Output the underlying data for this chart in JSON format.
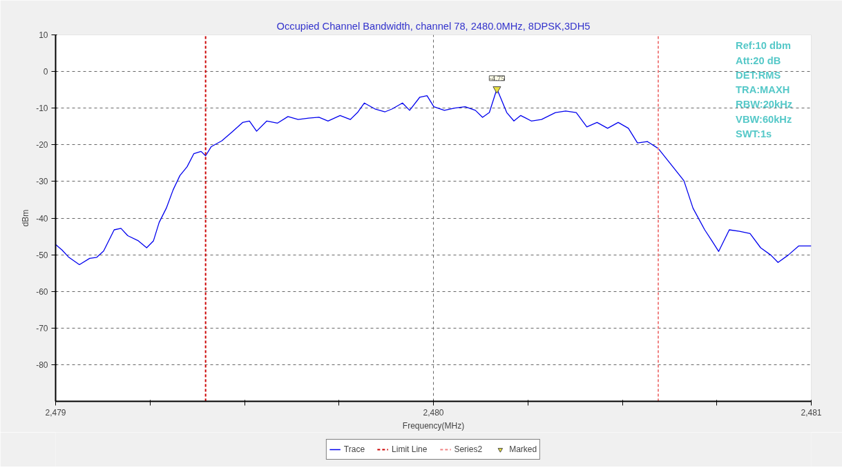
{
  "chart_data": {
    "type": "line",
    "title": "Occupied Channel Bandwidth, channel 78, 2480.0MHz, 8DPSK,3DH5",
    "xlabel": "Frequency(MHz)",
    "ylabel": "dBm",
    "xlim": [
      2479,
      2481
    ],
    "ylim": [
      -90,
      10
    ],
    "xticks": [
      {
        "value": 2479,
        "label": "2,479"
      },
      {
        "value": 2479.25,
        "label": null
      },
      {
        "value": 2479.5,
        "label": null
      },
      {
        "value": 2479.75,
        "label": null
      },
      {
        "value": 2480,
        "label": "2,480"
      },
      {
        "value": 2480.25,
        "label": null
      },
      {
        "value": 2480.5,
        "label": null
      },
      {
        "value": 2480.75,
        "label": null
      },
      {
        "value": 2481,
        "label": "2,481"
      }
    ],
    "yticks": [
      10,
      0,
      -10,
      -20,
      -30,
      -40,
      -50,
      -60,
      -70,
      -80
    ],
    "grid": true,
    "legend": "bottom",
    "annotations": [
      "Ref:10 dbm",
      "Att:20 dB",
      "DET:RMS",
      "TRA:MAXH",
      "RBW:20kHz",
      "VBW:60kHz",
      "SWT:1s"
    ],
    "series": [
      {
        "name": "Trace",
        "color": "#0000ee",
        "line_style": "solid",
        "x": [
          2479.0,
          2479.017,
          2479.035,
          2479.063,
          2479.09,
          2479.109,
          2479.127,
          2479.155,
          2479.173,
          2479.191,
          2479.219,
          2479.241,
          2479.259,
          2479.274,
          2479.293,
          2479.311,
          2479.329,
          2479.348,
          2479.366,
          2479.385,
          2479.397,
          2479.412,
          2479.44,
          2479.467,
          2479.495,
          2479.513,
          2479.532,
          2479.559,
          2479.587,
          2479.615,
          2479.642,
          2479.67,
          2479.697,
          2479.721,
          2479.753,
          2479.78,
          2479.799,
          2479.817,
          2479.845,
          2479.872,
          2479.891,
          2479.918,
          2479.937,
          2479.964,
          2479.983,
          2480.001,
          2480.029,
          2480.056,
          2480.084,
          2480.111,
          2480.13,
          2480.148,
          2480.168,
          2480.194,
          2480.213,
          2480.231,
          2480.259,
          2480.286,
          2480.323,
          2480.35,
          2480.378,
          2480.406,
          2480.433,
          2480.461,
          2480.489,
          2480.516,
          2480.54,
          2480.566,
          2480.595,
          2480.626,
          2480.663,
          2480.687,
          2480.718,
          2480.737,
          2480.755,
          2480.783,
          2480.81,
          2480.838,
          2480.866,
          2480.893,
          2480.912,
          2480.939,
          2480.967,
          2481.0
        ],
        "values": [
          -47.2,
          -48.7,
          -50.7,
          -52.7,
          -51,
          -50.7,
          -49,
          -43.2,
          -42.8,
          -44.8,
          -46.2,
          -48.1,
          -46.2,
          -41.2,
          -37.3,
          -32.3,
          -28.4,
          -26,
          -22.4,
          -21.8,
          -23,
          -20.5,
          -18.9,
          -16.5,
          -13.9,
          -13.5,
          -16.3,
          -13.5,
          -14.1,
          -12.3,
          -13.1,
          -12.7,
          -12.5,
          -13.5,
          -12,
          -13.1,
          -11.2,
          -8.6,
          -10.2,
          -11,
          -10.2,
          -8.6,
          -10.6,
          -7,
          -6.6,
          -9.6,
          -10.6,
          -10,
          -9.6,
          -10.6,
          -12.5,
          -11.2,
          -4.75,
          -11.2,
          -13.5,
          -12,
          -13.5,
          -13.1,
          -11.2,
          -10.8,
          -11.2,
          -15.1,
          -13.9,
          -15.5,
          -13.9,
          -15.5,
          -19.5,
          -19.1,
          -21,
          -25,
          -29.8,
          -37.3,
          -43.2,
          -46.2,
          -49.1,
          -43.2,
          -43.6,
          -44.2,
          -48.1,
          -50.1,
          -52.1,
          -50.1,
          -47.6,
          -47.6
        ]
      },
      {
        "name": "Limit Line",
        "type": "line",
        "color": "#cc0000",
        "line_style": "dashed",
        "x": [
          2479.397,
          2479.397
        ],
        "values": [
          -90,
          10
        ]
      },
      {
        "name": "Series2",
        "type": "line",
        "color": "#f08080",
        "line_style": "dashed",
        "x": [
          2480.595,
          2480.595
        ],
        "values": [
          -90,
          10
        ]
      },
      {
        "name": "Marked",
        "type": "scatter",
        "marker": "triangle",
        "color": "#e8e040",
        "x": [
          2480.168
        ],
        "values": [
          -4.75
        ],
        "value_labels": [
          "-4.75"
        ]
      }
    ]
  }
}
